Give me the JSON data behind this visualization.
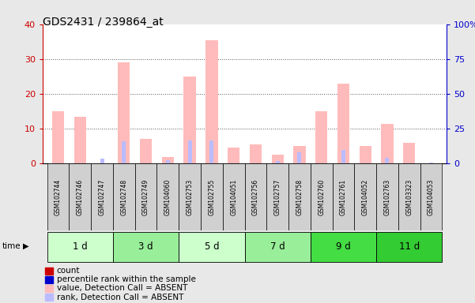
{
  "title": "GDS2431 / 239864_at",
  "samples": [
    "GSM102744",
    "GSM102746",
    "GSM102747",
    "GSM102748",
    "GSM102749",
    "GSM104060",
    "GSM102753",
    "GSM102755",
    "GSM104051",
    "GSM102756",
    "GSM102757",
    "GSM102758",
    "GSM102760",
    "GSM102761",
    "GSM104052",
    "GSM102763",
    "GSM103323",
    "GSM104053"
  ],
  "groups": [
    {
      "label": "1 d",
      "indices": [
        0,
        1,
        2
      ],
      "color": "#ccffcc"
    },
    {
      "label": "3 d",
      "indices": [
        3,
        4,
        5
      ],
      "color": "#99ee99"
    },
    {
      "label": "5 d",
      "indices": [
        6,
        7,
        8
      ],
      "color": "#ccffcc"
    },
    {
      "label": "7 d",
      "indices": [
        9,
        10,
        11
      ],
      "color": "#99ee99"
    },
    {
      "label": "9 d",
      "indices": [
        12,
        13,
        14
      ],
      "color": "#44dd44"
    },
    {
      "label": "11 d",
      "indices": [
        15,
        16,
        17
      ],
      "color": "#33cc33"
    }
  ],
  "value_absent": [
    15,
    13.5,
    0,
    29,
    7,
    2,
    25,
    35.5,
    4.5,
    5.5,
    2.5,
    5,
    15,
    23,
    5,
    11.5,
    6,
    0
  ],
  "rank_absent": [
    0,
    0,
    3.5,
    16,
    0,
    2.5,
    16.5,
    16.5,
    0,
    0,
    2,
    8,
    0,
    10,
    0,
    4,
    0,
    1
  ],
  "ylim_left": [
    0,
    40
  ],
  "ylim_right": [
    0,
    100
  ],
  "yticks_left": [
    0,
    10,
    20,
    30,
    40
  ],
  "yticks_right": [
    0,
    25,
    50,
    75,
    100
  ],
  "yticklabels_right": [
    "0",
    "25",
    "50",
    "75",
    "100%"
  ],
  "left_axis_color": "#cc0000",
  "right_axis_color": "#0000cc",
  "background_color": "#e8e8e8",
  "plot_bg_color": "#ffffff",
  "sample_box_color": "#d0d0d0",
  "bar_color_value_absent": "#ffbbbb",
  "bar_color_rank_absent": "#bbbbff",
  "bar_color_count": "#cc0000",
  "bar_color_rank": "#0000cc",
  "grid_color": "#555555",
  "legend_items": [
    {
      "color": "#cc0000",
      "label": "count"
    },
    {
      "color": "#0000cc",
      "label": "percentile rank within the sample"
    },
    {
      "color": "#ffbbbb",
      "label": "value, Detection Call = ABSENT"
    },
    {
      "color": "#bbbbff",
      "label": "rank, Detection Call = ABSENT"
    }
  ]
}
